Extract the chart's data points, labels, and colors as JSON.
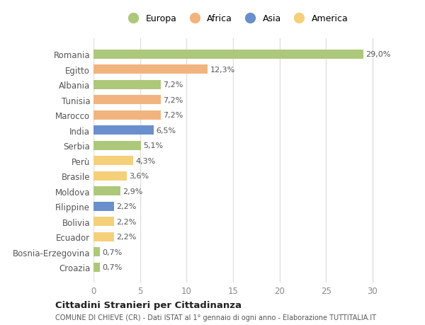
{
  "countries": [
    "Romania",
    "Egitto",
    "Albania",
    "Tunisia",
    "Marocco",
    "India",
    "Serbia",
    "Perù",
    "Brasile",
    "Moldova",
    "Filippine",
    "Bolivia",
    "Ecuador",
    "Bosnia-Erzegovina",
    "Croazia"
  ],
  "values": [
    29.0,
    12.3,
    7.2,
    7.2,
    7.2,
    6.5,
    5.1,
    4.3,
    3.6,
    2.9,
    2.2,
    2.2,
    2.2,
    0.7,
    0.7
  ],
  "labels": [
    "29,0%",
    "12,3%",
    "7,2%",
    "7,2%",
    "7,2%",
    "6,5%",
    "5,1%",
    "4,3%",
    "3,6%",
    "2,9%",
    "2,2%",
    "2,2%",
    "2,2%",
    "0,7%",
    "0,7%"
  ],
  "colors": [
    "#adc87a",
    "#f2b47e",
    "#adc87a",
    "#f2b47e",
    "#f2b47e",
    "#6b8fcc",
    "#adc87a",
    "#f5d07a",
    "#f5d07a",
    "#adc87a",
    "#6b8fcc",
    "#f5d07a",
    "#f5d07a",
    "#adc87a",
    "#adc87a"
  ],
  "legend_labels": [
    "Europa",
    "Africa",
    "Asia",
    "America"
  ],
  "legend_colors": [
    "#adc87a",
    "#f2b47e",
    "#6b8fcc",
    "#f5d07a"
  ],
  "xlim": [
    0,
    32
  ],
  "xticks": [
    0,
    5,
    10,
    15,
    20,
    25,
    30
  ],
  "title1": "Cittadini Stranieri per Cittadinanza",
  "title2": "COMUNE DI CHIEVE (CR) - Dati ISTAT al 1° gennaio di ogni anno - Elaborazione TUTTITALIA.IT",
  "bg_color": "#ffffff",
  "grid_color": "#e0e0e0",
  "label_color": "#555555",
  "tick_color": "#888888"
}
